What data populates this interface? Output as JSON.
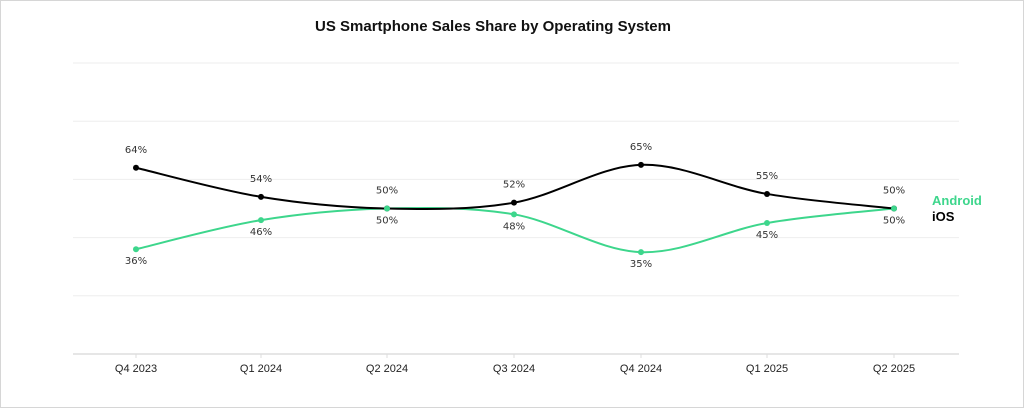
{
  "chart_data": {
    "type": "line",
    "title": "US Smartphone Sales Share by Operating System",
    "xlabel": "",
    "ylabel": "",
    "ylim": [
      0,
      100
    ],
    "grid": true,
    "categories": [
      "Q4 2023",
      "Q1 2024",
      "Q2 2024",
      "Q3 2024",
      "Q4 2024",
      "Q1 2025",
      "Q2 2025"
    ],
    "series": [
      {
        "name": "iOS",
        "color": "#000000",
        "values": [
          64,
          54,
          50,
          52,
          65,
          55,
          50
        ],
        "labels": [
          "64%",
          "54%",
          "50%",
          "52%",
          "65%",
          "55%",
          "50%"
        ]
      },
      {
        "name": "Android",
        "color": "#3dd68c",
        "values": [
          36,
          46,
          50,
          48,
          35,
          45,
          50
        ],
        "labels": [
          "36%",
          "46%",
          "50%",
          "48%",
          "35%",
          "45%",
          "50%"
        ]
      }
    ],
    "legend_position": "right"
  }
}
